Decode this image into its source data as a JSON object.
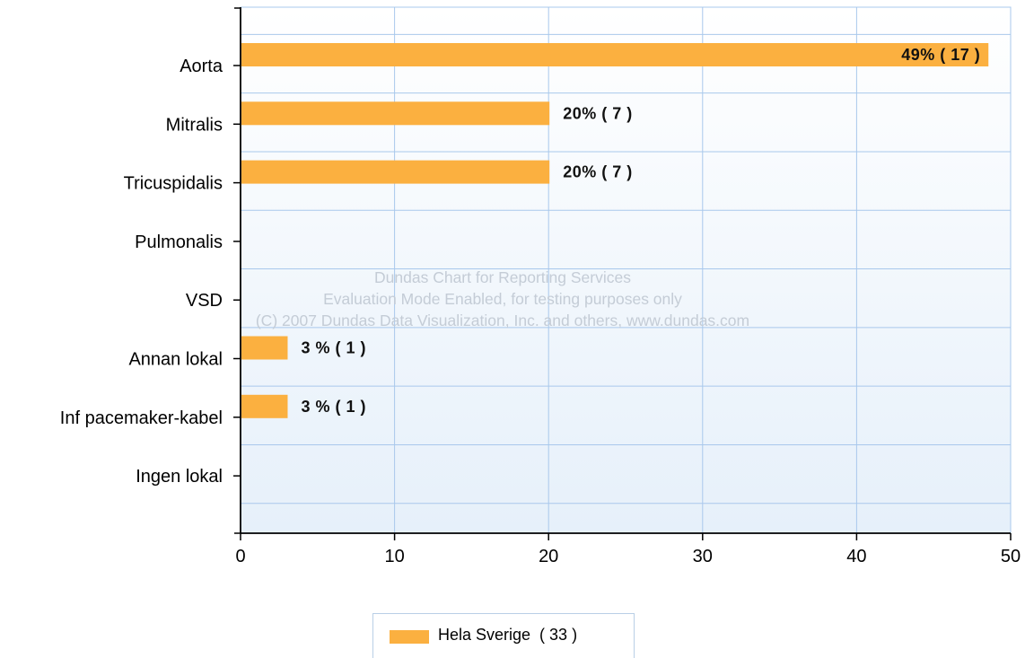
{
  "chart_data": {
    "type": "bar",
    "orientation": "horizontal",
    "categories": [
      "Aorta",
      "Mitralis",
      "Tricuspidalis",
      "Pulmonalis",
      "VSD",
      "Annan lokal",
      "Inf pacemaker-kabel",
      "Ingen lokal"
    ],
    "series": [
      {
        "name": "Hela Sverige  ( 33 )",
        "values": [
          48.5,
          20,
          20,
          0,
          0,
          3,
          3,
          0
        ],
        "labels": [
          "49% ( 17 )",
          "20% ( 7 )",
          "20% ( 7 )",
          "",
          "",
          "3 % ( 1 )",
          "3 % ( 1 )",
          ""
        ],
        "color": "#fbb040"
      }
    ],
    "xlim": [
      0,
      50
    ],
    "xticks": [
      "0",
      "10",
      "20",
      "30",
      "40",
      "50"
    ],
    "grid": true,
    "legend_position": "bottom"
  },
  "watermark": {
    "line1": "Dundas Chart for Reporting Services",
    "line2": "Evaluation Mode Enabled, for testing purposes only",
    "line3": "(C) 2007 Dundas Data Visualization, Inc. and others, www.dundas.com"
  },
  "colors": {
    "grid": "#a9c8ec",
    "plot_top": "#ffffff",
    "plot_bottom": "#e6f0fa",
    "axis": "#000000"
  }
}
